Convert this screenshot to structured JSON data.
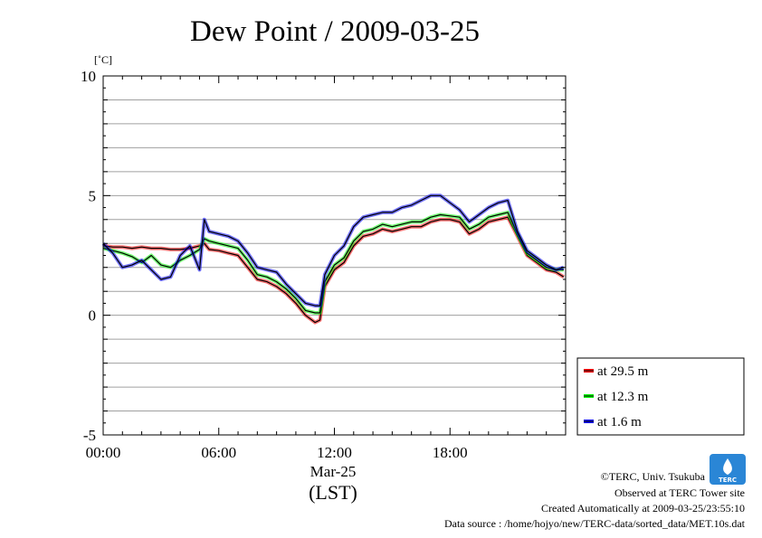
{
  "chart_data": {
    "type": "line",
    "title": "Dew Point / 2009-03-25",
    "ylabel": "[˚C]",
    "xlabel_date": "Mar-25",
    "xlabel_tz": "(LST)",
    "ylim": [
      -5,
      10
    ],
    "xlim_hours": [
      0,
      24
    ],
    "y_ticks": [
      {
        "value": -5,
        "label": "-5"
      },
      {
        "value": 0,
        "label": "0"
      },
      {
        "value": 5,
        "label": "5"
      },
      {
        "value": 10,
        "label": "10"
      }
    ],
    "x_ticks": [
      {
        "value": 0,
        "label": "00:00"
      },
      {
        "value": 6,
        "label": "06:00"
      },
      {
        "value": 12,
        "label": "12:00"
      },
      {
        "value": 18,
        "label": "18:00"
      }
    ],
    "grid": true,
    "legend_position": "bottom-right outside",
    "x_hours": [
      0,
      0.5,
      1,
      1.5,
      2,
      2.5,
      3,
      3.5,
      4,
      4.5,
      5,
      5.25,
      5.5,
      6,
      6.5,
      7,
      7.5,
      8,
      8.5,
      9,
      9.5,
      10,
      10.5,
      11,
      11.25,
      11.5,
      12,
      12.5,
      13,
      13.5,
      14,
      14.5,
      15,
      15.5,
      16,
      16.5,
      17,
      17.5,
      18,
      18.5,
      19,
      19.5,
      20,
      20.5,
      21,
      21.5,
      22,
      22.5,
      23,
      23.5,
      23.9
    ],
    "series": [
      {
        "name": "at 29.5 m",
        "color": "#ff0000",
        "values": [
          2.9,
          2.85,
          2.85,
          2.8,
          2.85,
          2.8,
          2.8,
          2.75,
          2.75,
          2.8,
          2.9,
          3.0,
          2.75,
          2.7,
          2.6,
          2.5,
          2.0,
          1.5,
          1.4,
          1.2,
          0.9,
          0.5,
          0.0,
          -0.3,
          -0.2,
          1.2,
          1.9,
          2.2,
          2.9,
          3.3,
          3.4,
          3.6,
          3.5,
          3.6,
          3.7,
          3.7,
          3.9,
          4.0,
          4.0,
          3.9,
          3.4,
          3.6,
          3.9,
          4.0,
          4.1,
          3.3,
          2.5,
          2.2,
          1.9,
          1.8,
          1.6
        ]
      },
      {
        "name": "at 12.3 m",
        "color": "#00ff00",
        "values": [
          2.8,
          2.7,
          2.6,
          2.45,
          2.2,
          2.5,
          2.1,
          2.0,
          2.3,
          2.5,
          2.75,
          3.2,
          3.1,
          3.0,
          2.9,
          2.8,
          2.3,
          1.7,
          1.6,
          1.4,
          1.1,
          0.7,
          0.2,
          0.1,
          0.1,
          1.4,
          2.1,
          2.4,
          3.1,
          3.5,
          3.6,
          3.8,
          3.7,
          3.8,
          3.9,
          3.9,
          4.1,
          4.2,
          4.15,
          4.1,
          3.6,
          3.8,
          4.1,
          4.2,
          4.3,
          3.4,
          2.6,
          2.3,
          2.0,
          1.9,
          1.9
        ]
      },
      {
        "name": "at 1.6 m",
        "color": "#0000ff",
        "values": [
          3.0,
          2.6,
          2.0,
          2.1,
          2.3,
          1.9,
          1.5,
          1.6,
          2.5,
          2.9,
          1.9,
          4.0,
          3.5,
          3.4,
          3.3,
          3.1,
          2.6,
          2.0,
          1.9,
          1.8,
          1.3,
          0.9,
          0.5,
          0.4,
          0.4,
          1.7,
          2.5,
          2.9,
          3.7,
          4.1,
          4.2,
          4.3,
          4.3,
          4.5,
          4.6,
          4.8,
          5.0,
          5.0,
          4.7,
          4.4,
          3.9,
          4.2,
          4.5,
          4.7,
          4.8,
          3.5,
          2.7,
          2.4,
          2.1,
          1.9,
          2.0
        ]
      }
    ]
  },
  "footer": {
    "copyright": "©TERC, Univ. Tsukuba",
    "observed": "Observed at TERC Tower site",
    "created": "Created Automatically at 2009-03-25/23:55:10",
    "source": "Data source : /home/hojyo/new/TERC-data/sorted_data/MET.10s.dat"
  },
  "logo": {
    "text": "TERC"
  }
}
